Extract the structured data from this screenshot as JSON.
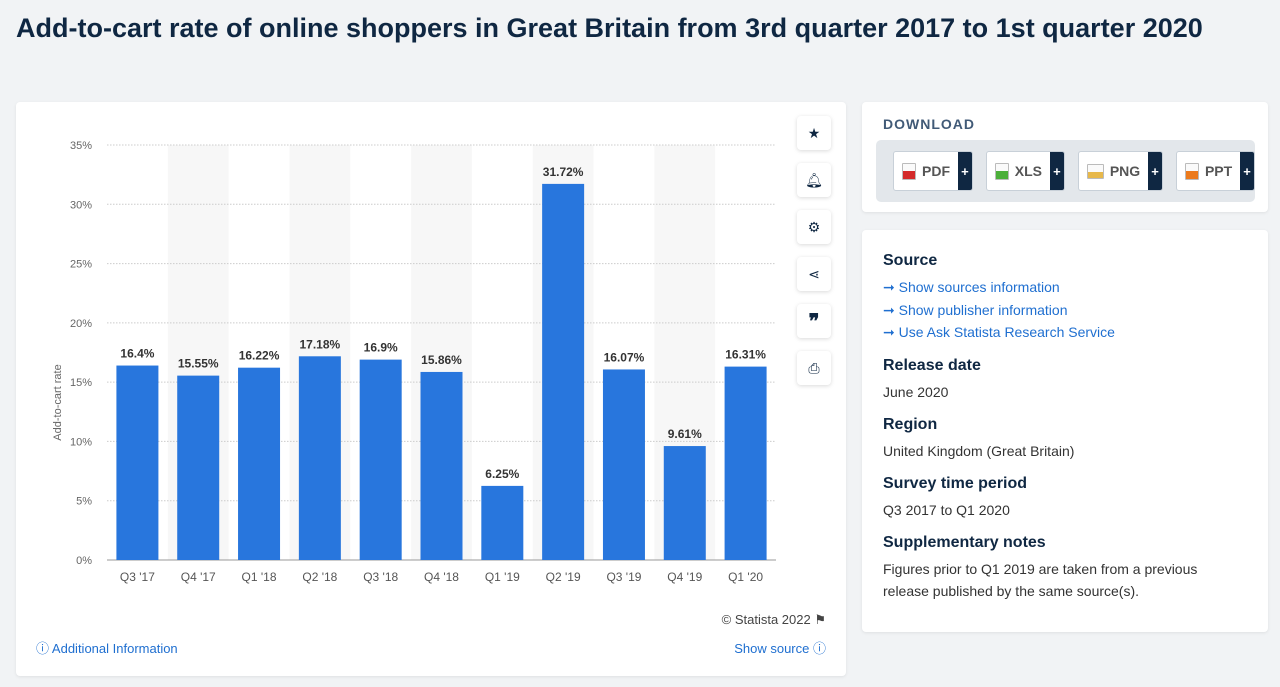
{
  "title": "Add-to-cart rate of online shoppers in Great Britain from 3rd quarter 2017 to 1st quarter 2020",
  "chart_data": {
    "type": "bar",
    "categories": [
      "Q3 '17",
      "Q4 '17",
      "Q1 '18",
      "Q2 '18",
      "Q3 '18",
      "Q4 '18",
      "Q1 '19",
      "Q2 '19",
      "Q3 '19",
      "Q4 '19",
      "Q1 '20"
    ],
    "values": [
      16.4,
      15.55,
      16.22,
      17.18,
      16.9,
      15.86,
      6.25,
      31.72,
      16.07,
      9.61,
      16.31
    ],
    "labels": [
      "16.4%",
      "15.55%",
      "16.22%",
      "17.18%",
      "16.9%",
      "15.86%",
      "6.25%",
      "31.72%",
      "16.07%",
      "9.61%",
      "16.31%"
    ],
    "ylabel": "Add-to-cart rate",
    "ylim": [
      0,
      35
    ],
    "yticks": [
      "0%",
      "5%",
      "10%",
      "15%",
      "20%",
      "25%",
      "30%",
      "35%"
    ],
    "grid": true,
    "bar_color": "#2876dd"
  },
  "chart_footer": {
    "copyright": "© Statista 2022",
    "additional": "Additional Information",
    "show_source": "Show source"
  },
  "download": {
    "title": "DOWNLOAD",
    "buttons": [
      "PDF",
      "XLS",
      "PNG",
      "PPT"
    ]
  },
  "info": {
    "source_title": "Source",
    "links": [
      "Show sources information",
      "Show publisher information",
      "Use Ask Statista Research Service"
    ],
    "release_title": "Release date",
    "release": "June 2020",
    "region_title": "Region",
    "region": "United Kingdom (Great Britain)",
    "period_title": "Survey time period",
    "period": "Q3 2017 to Q1 2020",
    "notes_title": "Supplementary notes",
    "notes": "Figures prior to Q1 2019 are taken from a previous release published by the same source(s)."
  }
}
